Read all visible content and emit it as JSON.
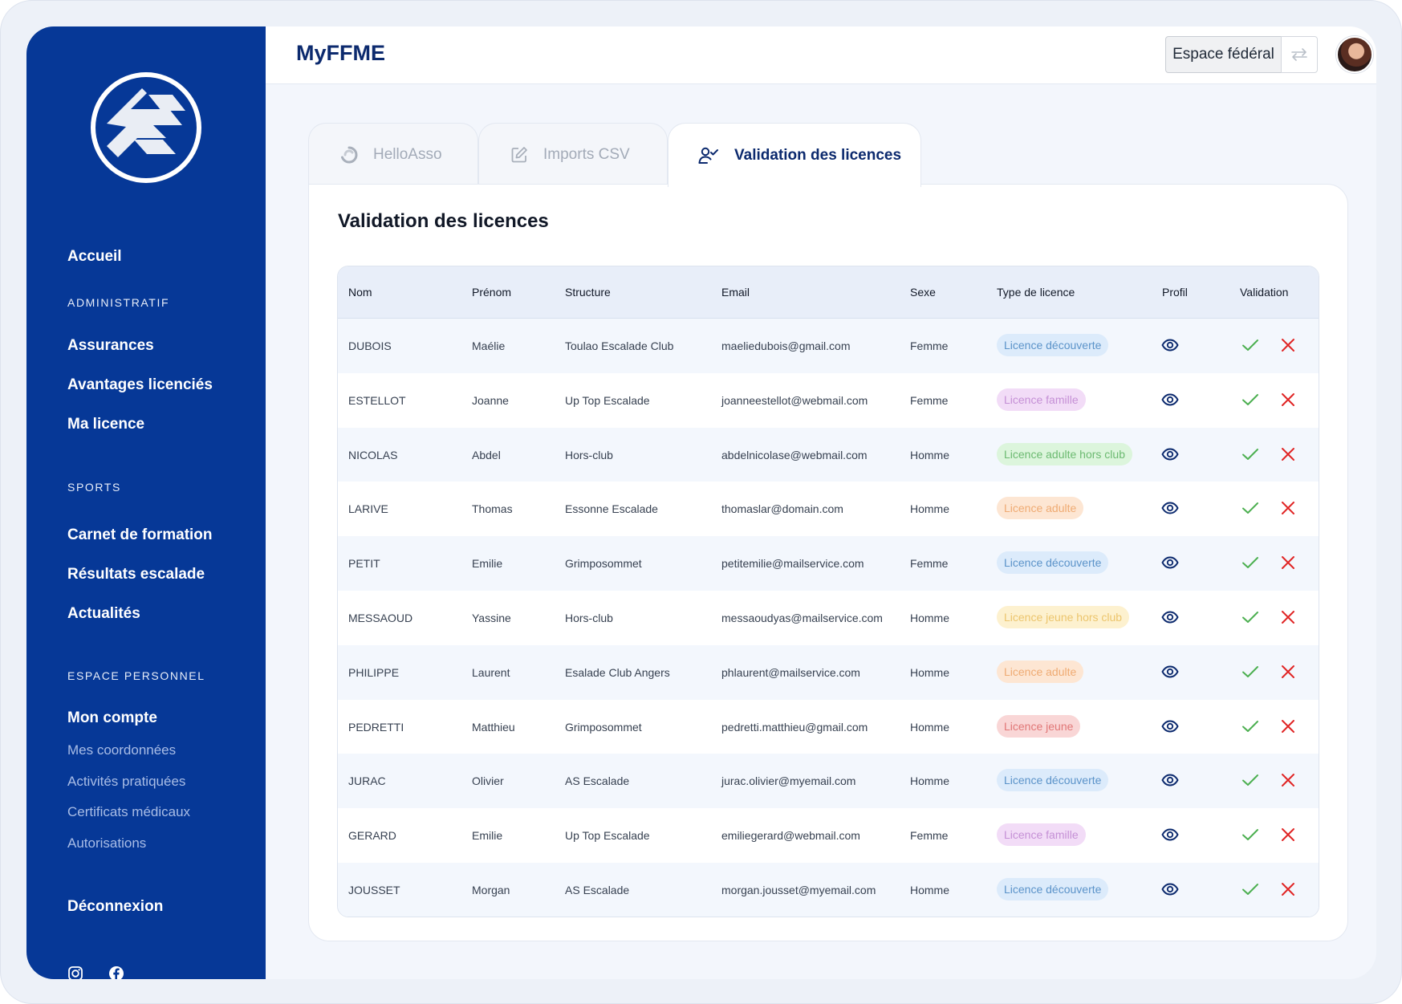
{
  "app": {
    "title": "MyFFME"
  },
  "header": {
    "space_button": "Espace fédéral"
  },
  "sidebar": {
    "home": "Accueil",
    "sections": {
      "admin": {
        "title": "ADMINISTRATIF",
        "items": [
          "Assurances",
          "Avantages licenciés",
          "Ma licence"
        ]
      },
      "sports": {
        "title": "SPORTS",
        "items": [
          "Carnet de formation",
          "Résultats escalade",
          "Actualités"
        ]
      },
      "personal": {
        "title": "ESPACE PERSONNEL",
        "main": "Mon compte",
        "sub": [
          "Mes coordonnées",
          "Activités pratiquées",
          "Certificats médicaux",
          "Autorisations"
        ]
      }
    },
    "logout": "Déconnexion",
    "social_icons": [
      "instagram-icon",
      "facebook-icon"
    ]
  },
  "tabs": [
    {
      "label": "HelloAsso",
      "icon": "helloasso-icon",
      "active": false
    },
    {
      "label": "Imports CSV",
      "icon": "edit-icon",
      "active": false
    },
    {
      "label": "Validation des licences",
      "icon": "user-check-icon",
      "active": true
    }
  ],
  "card": {
    "title": "Validation des licences"
  },
  "table": {
    "columns": [
      "Nom",
      "Prénom",
      "Structure",
      "Email",
      "Sexe",
      "Type de licence",
      "Profil",
      "Validation"
    ],
    "rows": [
      {
        "nom": "DUBOIS",
        "prenom": "Maélie",
        "structure": "Toulao Escalade Club",
        "email": "maeliedubois@gmail.com",
        "sexe": "Femme",
        "licence": "Licence découverte",
        "type": "decouverte"
      },
      {
        "nom": "ESTELLOT",
        "prenom": "Joanne",
        "structure": "Up Top Escalade",
        "email": "joanneestellot@webmail.com",
        "sexe": "Femme",
        "licence": "Licence famille",
        "type": "famille"
      },
      {
        "nom": "NICOLAS",
        "prenom": "Abdel",
        "structure": "Hors-club",
        "email": "abdelnicolase@webmail.com",
        "sexe": "Homme",
        "licence": "Licence adulte hors club",
        "type": "adulte_hc"
      },
      {
        "nom": "LARIVE",
        "prenom": "Thomas",
        "structure": "Essonne Escalade",
        "email": "thomaslar@domain.com",
        "sexe": "Homme",
        "licence": "Licence adulte",
        "type": "adulte"
      },
      {
        "nom": "PETIT",
        "prenom": "Emilie",
        "structure": "Grimposommet",
        "email": "petitemilie@mailservice.com",
        "sexe": "Femme",
        "licence": "Licence découverte",
        "type": "decouverte"
      },
      {
        "nom": "MESSAOUD",
        "prenom": "Yassine",
        "structure": "Hors-club",
        "email": "messaoudyas@mailservice.com",
        "sexe": "Homme",
        "licence": "Licence jeune hors club",
        "type": "jeune_hc"
      },
      {
        "nom": "PHILIPPE",
        "prenom": "Laurent",
        "structure": "Esalade Club Angers",
        "email": "phlaurent@mailservice.com",
        "sexe": "Homme",
        "licence": "Licence adulte",
        "type": "adulte"
      },
      {
        "nom": "PEDRETTI",
        "prenom": "Matthieu",
        "structure": "Grimposommet",
        "email": "pedretti.matthieu@gmail.com",
        "sexe": "Homme",
        "licence": "Licence jeune",
        "type": "jeune"
      },
      {
        "nom": "JURAC",
        "prenom": "Olivier",
        "structure": "AS Escalade",
        "email": "jurac.olivier@myemail.com",
        "sexe": "Homme",
        "licence": "Licence découverte",
        "type": "decouverte"
      },
      {
        "nom": "GERARD",
        "prenom": "Emilie",
        "structure": "Up Top Escalade",
        "email": "emiliegerard@webmail.com",
        "sexe": "Femme",
        "licence": "Licence famille",
        "type": "famille"
      },
      {
        "nom": "JOUSSET",
        "prenom": "Morgan",
        "structure": "AS Escalade",
        "email": "morgan.jousset@myemail.com",
        "sexe": "Homme",
        "licence": "Licence découverte",
        "type": "decouverte"
      }
    ]
  },
  "badge_colors": {
    "decouverte": {
      "bg": "#dcebfb",
      "fg": "#5b93c9"
    },
    "famille": {
      "bg": "#f2dcf7",
      "fg": "#c590d6"
    },
    "adulte_hc": {
      "bg": "#dcf5dc",
      "fg": "#6cba71"
    },
    "adulte": {
      "bg": "#fde6d3",
      "fg": "#efab73"
    },
    "jeune_hc": {
      "bg": "#fdf1cf",
      "fg": "#ecc56d"
    },
    "jeune": {
      "bg": "#f9d6d6",
      "fg": "#e17777"
    }
  },
  "colors": {
    "sidebar": "#063897",
    "accent": "#0c2a6e",
    "approve": "#4caf50",
    "reject": "#e02424"
  }
}
